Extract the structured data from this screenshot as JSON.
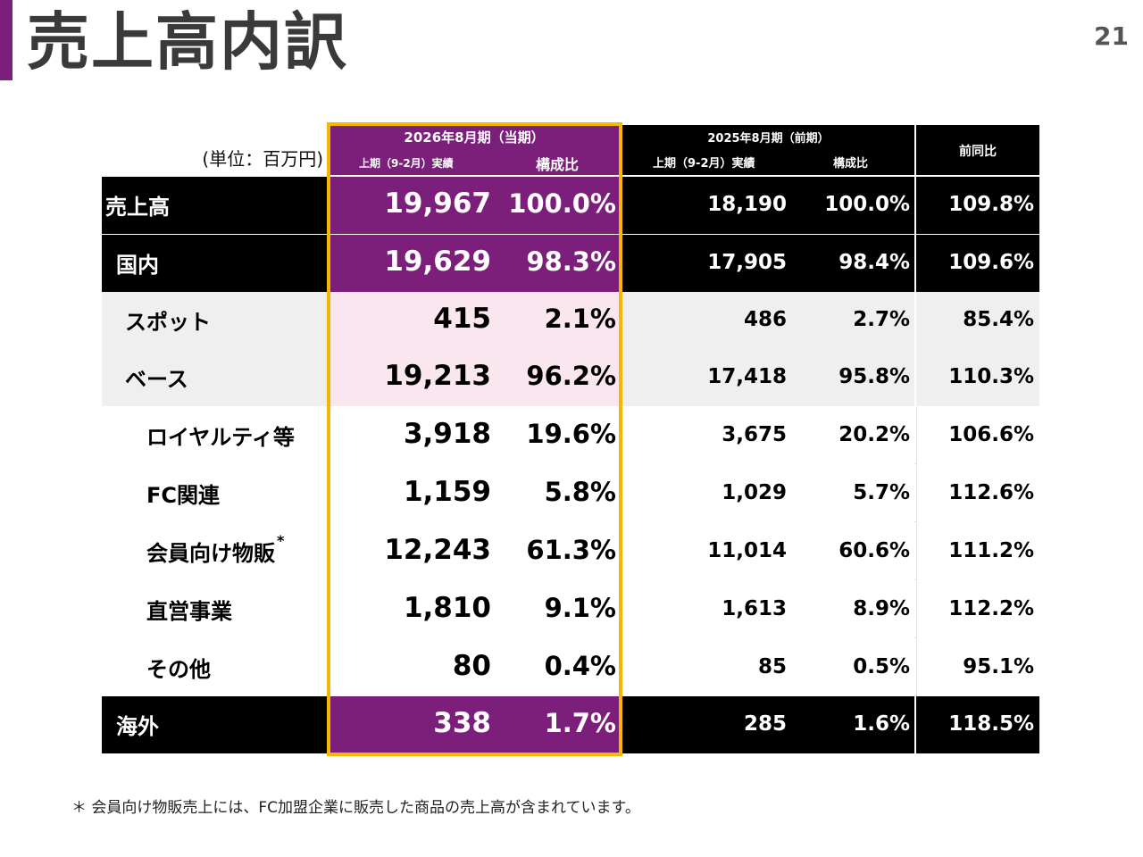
{
  "slide": {
    "title": "売上高内訳",
    "page_number": "21"
  },
  "colors": {
    "accent": "#7b1f7a",
    "highlight": "#f5b800",
    "soft_pink": "#f9e6ee",
    "grey": "#efefef"
  },
  "table": {
    "unit_label": "(単位：百万円)",
    "current": {
      "period": "2026年8月期（当期）",
      "h1_label": "上期（9-2月）実績",
      "ratio_label": "構成比"
    },
    "previous": {
      "period": "2025年8月期（前期）",
      "h1_label": "上期（9-2月）実績",
      "ratio_label": "構成比"
    },
    "yoy_label": "前同比",
    "rows": [
      {
        "label": "売上高",
        "cur_value": "19,967",
        "cur_ratio": "100.0%",
        "prev_value": "18,190",
        "prev_ratio": "100.0%",
        "yoy": "109.8%"
      },
      {
        "label": "国内",
        "cur_value": "19,629",
        "cur_ratio": "98.3%",
        "prev_value": "17,905",
        "prev_ratio": "98.4%",
        "yoy": "109.6%"
      },
      {
        "label": "スポット",
        "cur_value": "415",
        "cur_ratio": "2.1%",
        "prev_value": "486",
        "prev_ratio": "2.7%",
        "yoy": "85.4%"
      },
      {
        "label": "ベース",
        "cur_value": "19,213",
        "cur_ratio": "96.2%",
        "prev_value": "17,418",
        "prev_ratio": "95.8%",
        "yoy": "110.3%"
      },
      {
        "label": "ロイヤルティ等",
        "cur_value": "3,918",
        "cur_ratio": "19.6%",
        "prev_value": "3,675",
        "prev_ratio": "20.2%",
        "yoy": "106.6%"
      },
      {
        "label": "FC関連",
        "cur_value": "1,159",
        "cur_ratio": "5.8%",
        "prev_value": "1,029",
        "prev_ratio": "5.7%",
        "yoy": "112.6%"
      },
      {
        "label": "会員向け物販",
        "label_sup": "*",
        "cur_value": "12,243",
        "cur_ratio": "61.3%",
        "prev_value": "11,014",
        "prev_ratio": "60.6%",
        "yoy": "111.2%"
      },
      {
        "label": "直営事業",
        "cur_value": "1,810",
        "cur_ratio": "9.1%",
        "prev_value": "1,613",
        "prev_ratio": "8.9%",
        "yoy": "112.2%"
      },
      {
        "label": "その他",
        "cur_value": "80",
        "cur_ratio": "0.4%",
        "prev_value": "85",
        "prev_ratio": "0.5%",
        "yoy": "95.1%"
      },
      {
        "label": "海外",
        "cur_value": "338",
        "cur_ratio": "1.7%",
        "prev_value": "285",
        "prev_ratio": "1.6%",
        "yoy": "118.5%"
      }
    ]
  },
  "footnote": "＊ 会員向け物販売上には、FC加盟企業に販売した商品の売上高が含まれています。"
}
